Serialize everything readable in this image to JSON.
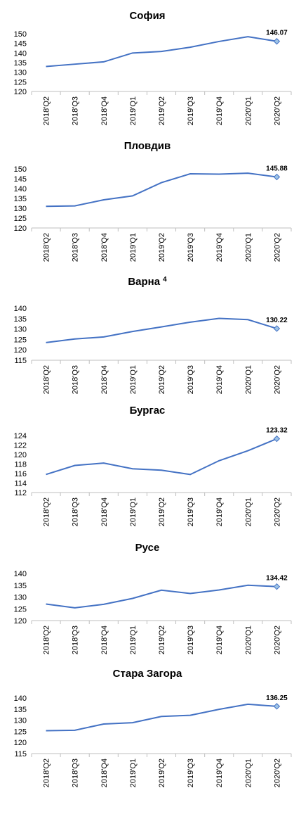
{
  "chart_data": [
    {
      "type": "line",
      "title": "София",
      "categories": [
        "2018'Q2",
        "2018'Q3",
        "2018'Q4",
        "2019'Q1",
        "2019'Q2",
        "2019'Q3",
        "2019'Q4",
        "2020'Q1",
        "2020'Q2"
      ],
      "series": [
        {
          "name": "София",
          "color": "#4472c4",
          "values": [
            133,
            134.2,
            135.4,
            140,
            140.8,
            143,
            146,
            148.5,
            146.07
          ],
          "value_labels": [
            null,
            null,
            null,
            null,
            null,
            null,
            null,
            null,
            "146.07"
          ]
        }
      ],
      "ylim": [
        120,
        150
      ],
      "yticks": [
        120,
        125,
        130,
        135,
        140,
        145,
        150
      ]
    },
    {
      "type": "line",
      "title": "Пловдив",
      "categories": [
        "2018'Q2",
        "2018'Q3",
        "2018'Q4",
        "2019'Q1",
        "2019'Q2",
        "2019'Q3",
        "2019'Q4",
        "2020'Q1",
        "2020'Q2"
      ],
      "series": [
        {
          "name": "Пловдив",
          "color": "#4472c4",
          "values": [
            131,
            131.2,
            134.3,
            136.3,
            143,
            147.5,
            147.3,
            147.8,
            145.88
          ],
          "value_labels": [
            null,
            null,
            null,
            null,
            null,
            null,
            null,
            null,
            "145.88"
          ]
        }
      ],
      "ylim": [
        120,
        150
      ],
      "yticks": [
        120,
        125,
        130,
        135,
        140,
        145,
        150
      ]
    },
    {
      "type": "line",
      "title": "Варна",
      "title_footnote": "4",
      "categories": [
        "2018'Q2",
        "2018'Q3",
        "2018'Q4",
        "2019'Q1",
        "2019'Q2",
        "2019'Q3",
        "2019'Q4",
        "2020'Q1",
        "2020'Q2"
      ],
      "series": [
        {
          "name": "Варна",
          "color": "#4472c4",
          "values": [
            123.5,
            125.2,
            126.2,
            128.8,
            131,
            133.3,
            135.1,
            134.5,
            130.22
          ],
          "value_labels": [
            null,
            null,
            null,
            null,
            null,
            null,
            null,
            null,
            "130.22"
          ]
        }
      ],
      "ylim": [
        115,
        140
      ],
      "yticks": [
        115,
        120,
        125,
        130,
        135,
        140
      ]
    },
    {
      "type": "line",
      "title": "Бургас",
      "categories": [
        "2018'Q2",
        "2018'Q3",
        "2018'Q4",
        "2019'Q1",
        "2019'Q2",
        "2019'Q3",
        "2019'Q4",
        "2020'Q1",
        "2020'Q2"
      ],
      "series": [
        {
          "name": "Бургас",
          "color": "#4472c4",
          "values": [
            115.8,
            117.7,
            118.2,
            117,
            116.7,
            115.8,
            118.7,
            120.8,
            123.32
          ],
          "value_labels": [
            null,
            null,
            null,
            null,
            null,
            null,
            null,
            null,
            "123.32"
          ]
        }
      ],
      "ylim": [
        112,
        124
      ],
      "yticks": [
        112,
        114,
        116,
        118,
        120,
        122,
        124
      ]
    },
    {
      "type": "line",
      "title": "Русе",
      "categories": [
        "2018'Q2",
        "2018'Q3",
        "2018'Q4",
        "2019'Q1",
        "2019'Q2",
        "2019'Q3",
        "2019'Q4",
        "2020'Q1",
        "2020'Q2"
      ],
      "series": [
        {
          "name": "Русе",
          "color": "#4472c4",
          "values": [
            127,
            125.4,
            126.9,
            129.4,
            132.9,
            131.5,
            133,
            135,
            134.42
          ],
          "value_labels": [
            null,
            null,
            null,
            null,
            null,
            null,
            null,
            null,
            "134.42"
          ]
        }
      ],
      "ylim": [
        120,
        140
      ],
      "yticks": [
        120,
        125,
        130,
        135,
        140
      ]
    },
    {
      "type": "line",
      "title": "Стара Загора",
      "categories": [
        "2018'Q2",
        "2018'Q3",
        "2018'Q4",
        "2019'Q1",
        "2019'Q2",
        "2019'Q3",
        "2019'Q4",
        "2020'Q1",
        "2020'Q2"
      ],
      "series": [
        {
          "name": "Стара Загора",
          "color": "#4472c4",
          "values": [
            125.3,
            125.5,
            128.3,
            128.9,
            131.7,
            132.2,
            134.9,
            137.2,
            136.25
          ],
          "value_labels": [
            null,
            null,
            null,
            null,
            null,
            null,
            null,
            null,
            "136.25"
          ]
        }
      ],
      "ylim": [
        115,
        140
      ],
      "yticks": [
        115,
        120,
        125,
        130,
        135,
        140
      ]
    }
  ]
}
